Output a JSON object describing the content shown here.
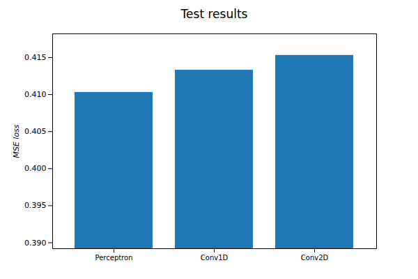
{
  "chart_data": {
    "type": "bar",
    "title": "Test results",
    "y_label": "MSE loss",
    "categories": [
      "Perceptron",
      "Conv1D",
      "Conv2D"
    ],
    "values": [
      0.4103,
      0.4133,
      0.4153
    ],
    "color": "#1f77b4",
    "ylim": [
      0.3892,
      0.4182
    ],
    "yticks": [
      {
        "value": 0.39,
        "label": "0.390"
      },
      0.395,
      {
        "value": 0.4,
        "label": "0.400"
      },
      0.405,
      {
        "value": 0.41,
        "label": "0.410"
      },
      0.415
    ],
    "grid": false
  }
}
